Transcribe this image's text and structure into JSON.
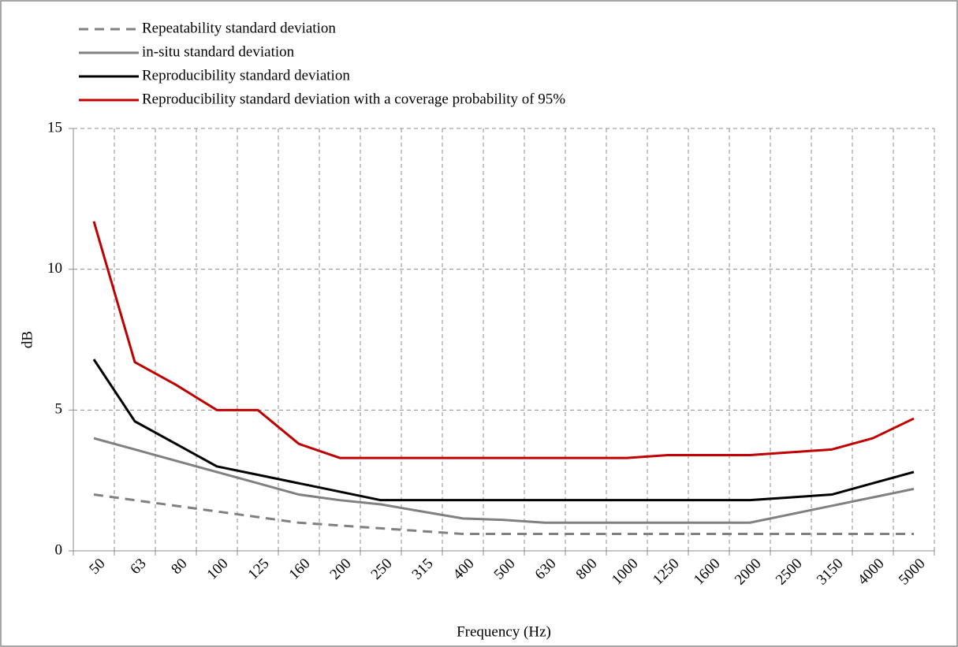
{
  "chart_data": {
    "type": "line",
    "x_label": "Frequency (Hz)",
    "y_label": "dB",
    "categories": [
      "50",
      "63",
      "80",
      "100",
      "125",
      "160",
      "200",
      "250",
      "315",
      "400",
      "500",
      "630",
      "800",
      "1000",
      "1250",
      "1600",
      "2000",
      "2500",
      "3150",
      "4000",
      "5000"
    ],
    "series": [
      {
        "name": "Repeatability standard deviation",
        "color": "#808080",
        "dashed": true,
        "values": [
          2.0,
          1.8,
          1.6,
          1.4,
          1.2,
          1.0,
          0.9,
          0.8,
          0.7,
          0.6,
          0.6,
          0.6,
          0.6,
          0.6,
          0.6,
          0.6,
          0.6,
          0.6,
          0.6,
          0.6,
          0.6
        ]
      },
      {
        "name": "in-situ standard deviation",
        "color": "#808080",
        "dashed": false,
        "values": [
          4.0,
          3.6,
          3.2,
          2.8,
          2.4,
          2.0,
          1.8,
          1.65,
          1.4,
          1.15,
          1.1,
          1.0,
          1.0,
          1.0,
          1.0,
          1.0,
          1.0,
          1.3,
          1.6,
          1.9,
          2.2
        ]
      },
      {
        "name": "Reproducibility standard deviation",
        "color": "#000000",
        "dashed": false,
        "values": [
          6.8,
          4.6,
          3.8,
          3.0,
          2.7,
          2.4,
          2.1,
          1.8,
          1.8,
          1.8,
          1.8,
          1.8,
          1.8,
          1.8,
          1.8,
          1.8,
          1.8,
          1.9,
          2.0,
          2.4,
          2.8
        ]
      },
      {
        "name": "Reproducibility standard deviation with a coverage probability of 95%",
        "color": "#c00000",
        "dashed": false,
        "values": [
          11.7,
          6.7,
          5.9,
          5.0,
          5.0,
          3.8,
          3.3,
          3.3,
          3.3,
          3.3,
          3.3,
          3.3,
          3.3,
          3.3,
          3.4,
          3.4,
          3.4,
          3.5,
          3.6,
          4.0,
          4.7
        ]
      }
    ],
    "ylim": [
      0,
      15
    ],
    "yticks": [
      0,
      5,
      10,
      15
    ],
    "grid": true
  }
}
